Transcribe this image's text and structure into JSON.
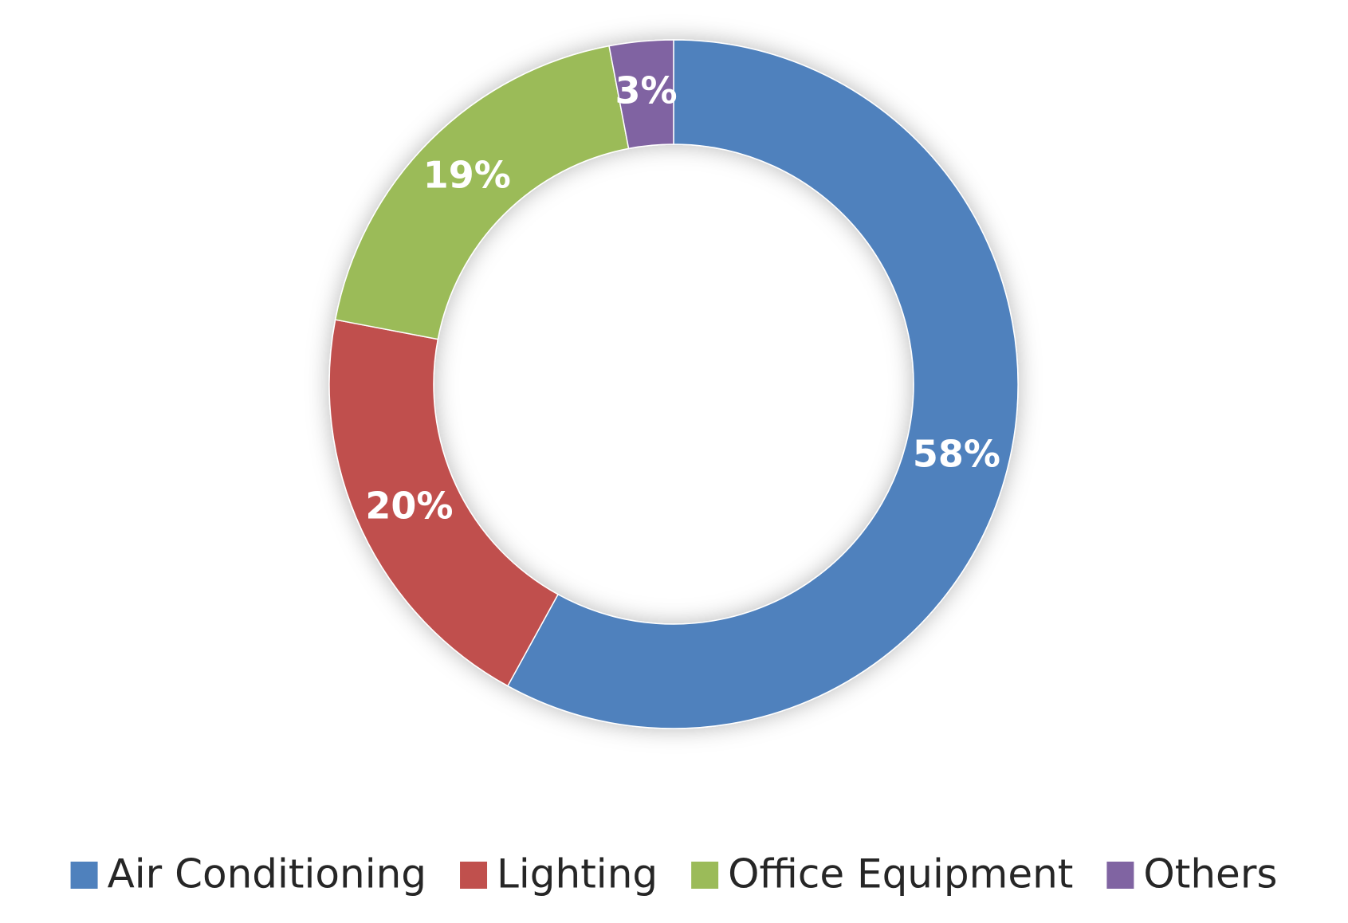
{
  "chart_data": {
    "type": "donut",
    "categories": [
      "Air Conditioning",
      "Lighting",
      "Office Equipment",
      "Others"
    ],
    "values": [
      58,
      20,
      19,
      3
    ],
    "value_labels": [
      "58%",
      "20%",
      "19%",
      "3%"
    ],
    "colors": [
      "#4f81bd",
      "#c0504d",
      "#9bbb59",
      "#8064a2"
    ],
    "legend": "bottom"
  }
}
